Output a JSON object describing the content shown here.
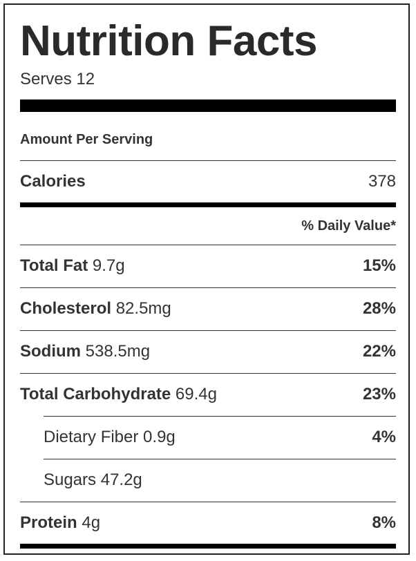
{
  "title": "Nutrition Facts",
  "serves": "Serves 12",
  "amount_per_serving": "Amount Per Serving",
  "calories": {
    "label": "Calories",
    "value": "378"
  },
  "daily_value_header": "% Daily Value*",
  "nutrients": [
    {
      "name": "Total Fat",
      "amount": "9.7g",
      "percent": "15%"
    },
    {
      "name": "Cholesterol",
      "amount": "82.5mg",
      "percent": "28%"
    },
    {
      "name": "Sodium",
      "amount": "538.5mg",
      "percent": "22%"
    },
    {
      "name": "Total Carbohydrate",
      "amount": "69.4g",
      "percent": "23%"
    }
  ],
  "sub_nutrients": [
    {
      "name": "Dietary Fiber",
      "amount": "0.9g",
      "percent": "4%"
    },
    {
      "name": "Sugars",
      "amount": "47.2g",
      "percent": ""
    }
  ],
  "protein": {
    "name": "Protein",
    "amount": "4g",
    "percent": "8%"
  }
}
